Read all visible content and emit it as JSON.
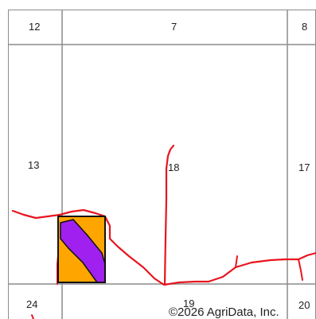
{
  "map": {
    "sections": [
      {
        "id": "12",
        "label": "12"
      },
      {
        "id": "7",
        "label": "7"
      },
      {
        "id": "8",
        "label": "8"
      },
      {
        "id": "13",
        "label": "13"
      },
      {
        "id": "18",
        "label": "18"
      },
      {
        "id": "17",
        "label": "17"
      },
      {
        "id": "24",
        "label": "24"
      },
      {
        "id": "19",
        "label": "19"
      },
      {
        "id": "20",
        "label": "20"
      }
    ],
    "copyright": "©2026 AgriData, Inc.",
    "colors": {
      "grid": "#8c8c8c",
      "road": "#e8141e",
      "soil_orange": "#ffa500",
      "soil_purple": "#a020f0",
      "outline": "#111111"
    }
  }
}
